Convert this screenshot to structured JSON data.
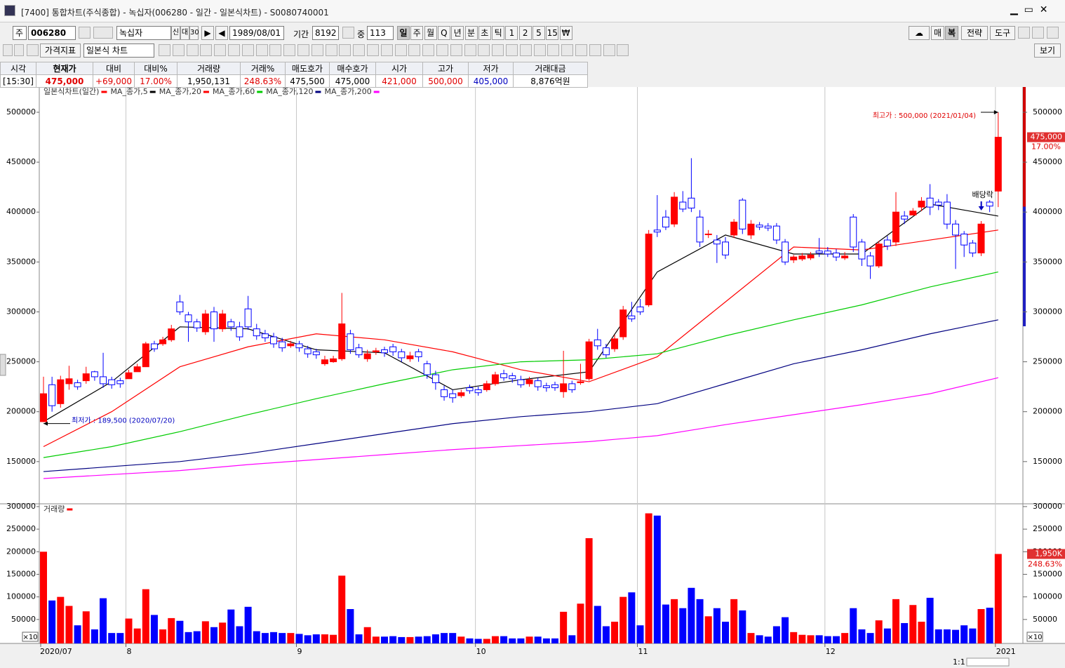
{
  "window": {
    "title": "[7400] 통합차트(주식종합) - 녹십자(006280 - 일간 - 일본식차트) - S0080740001",
    "toolbar": {
      "market": "주",
      "code": "006280",
      "name": "녹십자",
      "flags": [
        "신",
        "대",
        "30"
      ],
      "date": "1989/08/01",
      "period_label": "기간",
      "period": "8192",
      "count_label": "중",
      "count": "113",
      "intervals": [
        "일",
        "주",
        "월",
        "Q",
        "년",
        "분",
        "초",
        "틱",
        "1",
        "2",
        "5",
        "15",
        "₩"
      ],
      "right_buttons": [
        "매",
        "복",
        "전략",
        "도구"
      ],
      "indicator": "가격지표",
      "chart_style": "일본식 차트",
      "view": "보기"
    },
    "info": {
      "headers": [
        "시각",
        "현재가",
        "대비",
        "대비%",
        "거래량",
        "거래%",
        "매도호가",
        "매수호가",
        "시가",
        "고가",
        "저가",
        "거래대금"
      ],
      "values": [
        "[15:30]",
        "475,000",
        "+69,000",
        "17.00%",
        "1,950,131",
        "248.63%",
        "475,500",
        "475,000",
        "421,000",
        "500,000",
        "405,000",
        "8,876억원"
      ]
    },
    "zoom": "1:1"
  },
  "chart_data": {
    "type": "candlestick",
    "legend_title": "일본식차트(일간)",
    "up_color": "#ff0000",
    "down_color": "#0000ff",
    "categories": [
      "2020/07",
      null,
      null,
      null,
      null,
      null,
      null,
      null,
      null,
      null,
      "8",
      null,
      null,
      null,
      null,
      null,
      null,
      null,
      null,
      null,
      null,
      null,
      null,
      null,
      null,
      null,
      null,
      null,
      null,
      null,
      "9",
      null,
      null,
      null,
      null,
      null,
      null,
      null,
      null,
      null,
      null,
      null,
      null,
      null,
      null,
      null,
      null,
      null,
      null,
      null,
      null,
      "10",
      null,
      null,
      null,
      null,
      null,
      null,
      null,
      null,
      null,
      null,
      null,
      null,
      null,
      null,
      null,
      null,
      null,
      null,
      "11",
      null,
      null,
      null,
      null,
      null,
      null,
      null,
      null,
      null,
      null,
      null,
      null,
      null,
      null,
      null,
      null,
      null,
      null,
      null,
      null,
      null,
      "12",
      null,
      null,
      null,
      null,
      null,
      null,
      null,
      null,
      null,
      null,
      null,
      null,
      null,
      null,
      null,
      null,
      null,
      null,
      null,
      "2021"
    ],
    "open": [
      190000,
      227000,
      208000,
      228000,
      229000,
      231000,
      240000,
      235000,
      232000,
      231000,
      233000,
      240000,
      245000,
      268000,
      268000,
      272000,
      310000,
      297000,
      290000,
      280000,
      300000,
      283000,
      290000,
      285000,
      303000,
      283000,
      278000,
      275000,
      270000,
      266000,
      268000,
      263000,
      260000,
      248000,
      250000,
      253000,
      278000,
      264000,
      253000,
      260000,
      262000,
      265000,
      260000,
      253000,
      260000,
      248000,
      237000,
      222000,
      218000,
      216000,
      224000,
      222000,
      222000,
      228000,
      238000,
      236000,
      232000,
      228000,
      231000,
      226000,
      227000,
      220000,
      228000,
      229000,
      233000,
      272000,
      264000,
      263000,
      275000,
      296000,
      305000,
      307000,
      382000,
      395000,
      388000,
      410000,
      414000,
      395000,
      378000,
      372000,
      370000,
      377000,
      412000,
      377000,
      387000,
      386000,
      386000,
      370000,
      352000,
      353000,
      354000,
      361000,
      361000,
      359000,
      354000,
      395000,
      370000,
      356000,
      346000,
      372000,
      370000,
      396000,
      397000,
      405000,
      414000,
      410000,
      410000,
      388000,
      378000,
      369000,
      359000,
      410000,
      421000
    ],
    "high": [
      235000,
      235000,
      236000,
      246000,
      232000,
      245000,
      241000,
      259000,
      235000,
      234000,
      242000,
      248000,
      270000,
      271000,
      275000,
      287000,
      317000,
      300000,
      293000,
      302000,
      305000,
      302000,
      293000,
      290000,
      316000,
      288000,
      282000,
      279000,
      274000,
      271000,
      271000,
      266000,
      263000,
      256000,
      256000,
      319000,
      282000,
      268000,
      262000,
      264000,
      265000,
      268000,
      263000,
      260000,
      263000,
      251000,
      241000,
      226000,
      222000,
      222000,
      227000,
      225000,
      231000,
      240000,
      242000,
      239000,
      236000,
      235000,
      234000,
      229000,
      230000,
      261000,
      231000,
      248000,
      273000,
      283000,
      268000,
      277000,
      306000,
      310000,
      313000,
      382000,
      417000,
      402000,
      420000,
      421000,
      454000,
      402000,
      382000,
      377000,
      375000,
      393000,
      414000,
      392000,
      390000,
      389000,
      389000,
      373000,
      357000,
      359000,
      360000,
      374000,
      365000,
      363000,
      360000,
      398000,
      373000,
      360000,
      371000,
      376000,
      420000,
      401000,
      404000,
      415000,
      428000,
      413000,
      418000,
      392000,
      381000,
      372000,
      391000,
      412000,
      500000
    ],
    "low": [
      189500,
      200000,
      204000,
      222000,
      222000,
      228000,
      231000,
      224000,
      223000,
      224000,
      236000,
      242000,
      245000,
      260000,
      266000,
      270000,
      297000,
      270000,
      280000,
      277000,
      270000,
      280000,
      281000,
      271000,
      282000,
      272000,
      270000,
      264000,
      260000,
      264000,
      260000,
      254000,
      253000,
      246000,
      249000,
      251000,
      258000,
      254000,
      250000,
      257000,
      255000,
      256000,
      250000,
      250000,
      250000,
      233000,
      222000,
      211000,
      209000,
      214000,
      218000,
      216000,
      220000,
      226000,
      231000,
      229000,
      224000,
      225000,
      221000,
      220000,
      221000,
      214000,
      219000,
      227000,
      231000,
      262000,
      254000,
      260000,
      272000,
      290000,
      297000,
      305000,
      375000,
      382000,
      385000,
      400000,
      400000,
      365000,
      374000,
      349000,
      353000,
      374000,
      378000,
      373000,
      382000,
      381000,
      368000,
      347000,
      349000,
      351000,
      352000,
      355000,
      355000,
      351000,
      352000,
      360000,
      346000,
      333000,
      344000,
      362000,
      366000,
      388000,
      397000,
      401000,
      397000,
      402000,
      383000,
      343000,
      355000,
      355000,
      356000,
      400000,
      405000
    ],
    "close": [
      218000,
      206000,
      232000,
      233000,
      225000,
      238000,
      235000,
      228000,
      227000,
      228000,
      239000,
      245000,
      268000,
      263000,
      272000,
      283000,
      300000,
      290000,
      284000,
      298000,
      283000,
      298000,
      285000,
      275000,
      285000,
      276000,
      274000,
      268000,
      264000,
      268000,
      264000,
      258000,
      257000,
      252000,
      253000,
      288000,
      262000,
      257000,
      258000,
      261000,
      259000,
      260000,
      254000,
      256000,
      255000,
      237000,
      229000,
      215000,
      214000,
      219000,
      221000,
      219000,
      228000,
      237000,
      234000,
      233000,
      227000,
      232000,
      225000,
      224000,
      224000,
      228000,
      222000,
      230000,
      270000,
      266000,
      257000,
      273000,
      302000,
      293000,
      300000,
      378000,
      380000,
      385000,
      415000,
      403000,
      404000,
      370000,
      378000,
      368000,
      357000,
      390000,
      383000,
      388000,
      385000,
      384000,
      372000,
      350000,
      355000,
      356000,
      357000,
      359000,
      358000,
      355000,
      356000,
      365000,
      353000,
      346000,
      368000,
      366000,
      400000,
      393000,
      401000,
      411000,
      405000,
      407000,
      388000,
      377000,
      367000,
      359000,
      388000,
      406000,
      475000
    ],
    "ylim": [
      107700,
      525300
    ],
    "yticks": [
      150000,
      200000,
      250000,
      300000,
      350000,
      400000,
      450000,
      500000
    ],
    "ma_x": [
      0,
      8,
      16,
      24,
      32,
      40,
      48,
      56,
      64,
      72,
      80,
      88,
      96,
      104,
      112
    ],
    "ma": [
      {
        "name": "MA_종가,5",
        "color": "#000000",
        "values": [
          190000,
          230000,
          285000,
          283000,
          262000,
          259000,
          222000,
          232000,
          240000,
          340000,
          377000,
          358000,
          358000,
          408000,
          396000
        ]
      },
      {
        "name": "MA_종가,20",
        "color": "#ff0000",
        "values": [
          165000,
          200000,
          245000,
          265000,
          278000,
          272000,
          260000,
          242000,
          230000,
          255000,
          310000,
          365000,
          362000,
          372000,
          382000
        ]
      },
      {
        "name": "MA_종가,60",
        "color": "#00cc00",
        "values": [
          154000,
          165000,
          180000,
          197000,
          213000,
          228000,
          242000,
          250000,
          252000,
          258000,
          276000,
          292000,
          307000,
          325000,
          340000
        ]
      },
      {
        "name": "MA_종가,120",
        "color": "#000080",
        "values": [
          140000,
          145000,
          150000,
          158000,
          168000,
          178000,
          188000,
          195000,
          200000,
          208000,
          228000,
          248000,
          262000,
          278000,
          292000
        ]
      },
      {
        "name": "MA_종가,200",
        "color": "#ff00ff",
        "values": [
          133000,
          137000,
          141000,
          147000,
          152000,
          157000,
          162000,
          166000,
          170000,
          176000,
          187000,
          197000,
          207000,
          218000,
          234000
        ]
      }
    ],
    "volume": {
      "name": "거래량",
      "unit": "×10",
      "values": [
        200000,
        92000,
        100000,
        80000,
        37000,
        68000,
        28000,
        97000,
        20000,
        20000,
        52000,
        30000,
        117000,
        60000,
        28000,
        53000,
        47000,
        22000,
        24000,
        46000,
        33000,
        43000,
        72000,
        35000,
        78000,
        24000,
        20000,
        22000,
        20000,
        20000,
        18000,
        15000,
        17000,
        17000,
        16000,
        147000,
        73000,
        17000,
        33000,
        12000,
        12000,
        13000,
        11000,
        11000,
        12000,
        13000,
        17000,
        20000,
        20000,
        12000,
        8000,
        7000,
        7000,
        13000,
        13000,
        8000,
        8000,
        12000,
        12000,
        8000,
        8000,
        67000,
        15000,
        85000,
        230000,
        80000,
        35000,
        45000,
        100000,
        110000,
        37000,
        285000,
        280000,
        83000,
        95000,
        75000,
        120000,
        95000,
        57000,
        75000,
        45000,
        95000,
        70000,
        20000,
        15000,
        12000,
        35000,
        55000,
        22000,
        16000,
        15000,
        15000,
        13000,
        13000,
        20000,
        75000,
        28000,
        20000,
        48000,
        30000,
        95000,
        42000,
        82000,
        45000,
        98000,
        28000,
        28000,
        27000,
        37000,
        30000,
        73000,
        76000,
        195013
      ],
      "ylim": [
        0,
        303000
      ],
      "yticks": [
        50000,
        100000,
        150000,
        200000,
        250000,
        300000
      ],
      "last_label": "1,950K",
      "last_change": "248.63%"
    },
    "annotations": {
      "high": "최고가 : 500,000 (2021/01/04)",
      "low": "최저가 : 189,500 (2020/07/20)",
      "dividend": "배당락",
      "last_price": "475,000",
      "last_change": "17.00%"
    }
  }
}
